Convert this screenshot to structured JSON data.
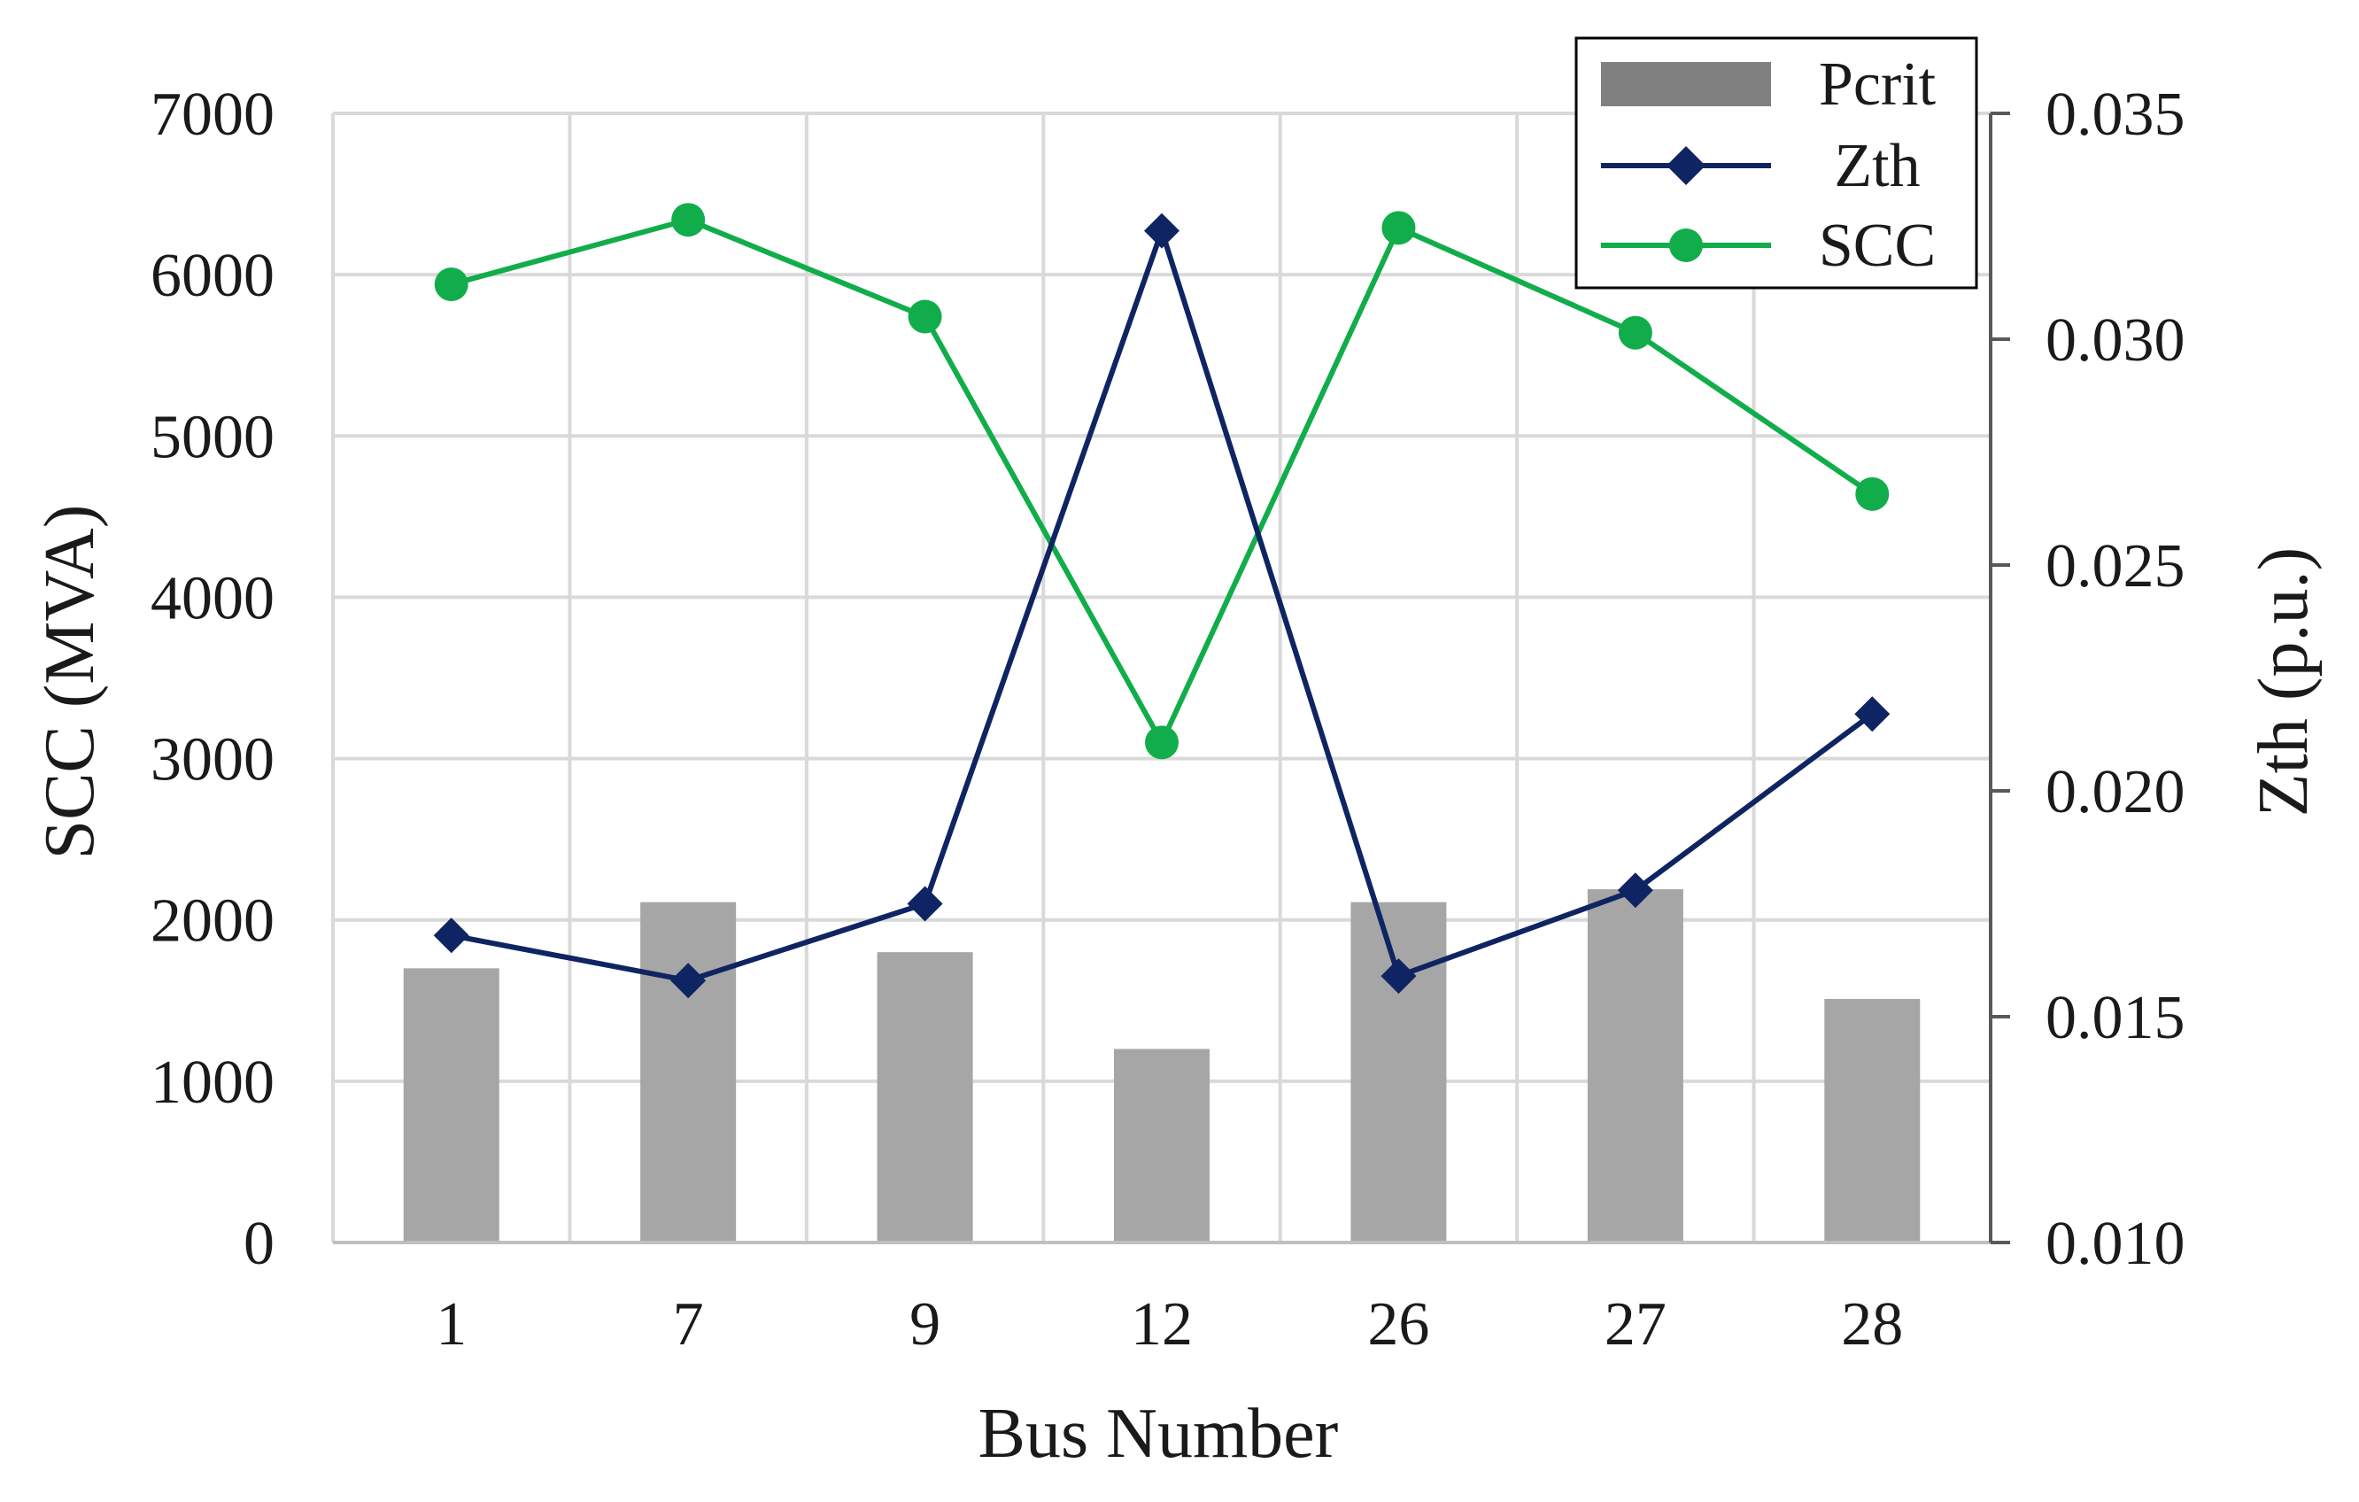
{
  "chart_data": {
    "type": "bar",
    "categories": [
      "1",
      "7",
      "9",
      "12",
      "26",
      "27",
      "28"
    ],
    "xlabel": "Bus Number",
    "ylabel_left": "SCC (MVA)",
    "ylabel_right": "Zth (p.u.)",
    "ylim_left": [
      0,
      7000
    ],
    "yticks_left": [
      "0",
      "1000",
      "2000",
      "3000",
      "4000",
      "5000",
      "6000",
      "7000"
    ],
    "ylim_right": [
      0.01,
      0.035
    ],
    "yticks_right": [
      "0.010",
      "0.015",
      "0.020",
      "0.025",
      "0.030",
      "0.035"
    ],
    "grid": true,
    "legend_position": "top-right",
    "series": [
      {
        "name": "Pcrit",
        "type": "bar",
        "axis": "left",
        "color": "#a6a6a6",
        "legend_color": "#808080",
        "values": [
          1700,
          2110,
          1800,
          1200,
          2110,
          2190,
          1510
        ]
      },
      {
        "name": "Zth",
        "type": "line",
        "axis": "right",
        "marker": "diamond",
        "color": "#0f2462",
        "values": [
          0.0168,
          0.0158,
          0.0175,
          0.0324,
          0.0159,
          0.0178,
          0.0217
        ]
      },
      {
        "name": "SCC",
        "type": "line",
        "axis": "left",
        "marker": "circle",
        "color": "#12ad4b",
        "values": [
          5940,
          6340,
          5740,
          3100,
          6290,
          5640,
          4640
        ]
      }
    ]
  }
}
